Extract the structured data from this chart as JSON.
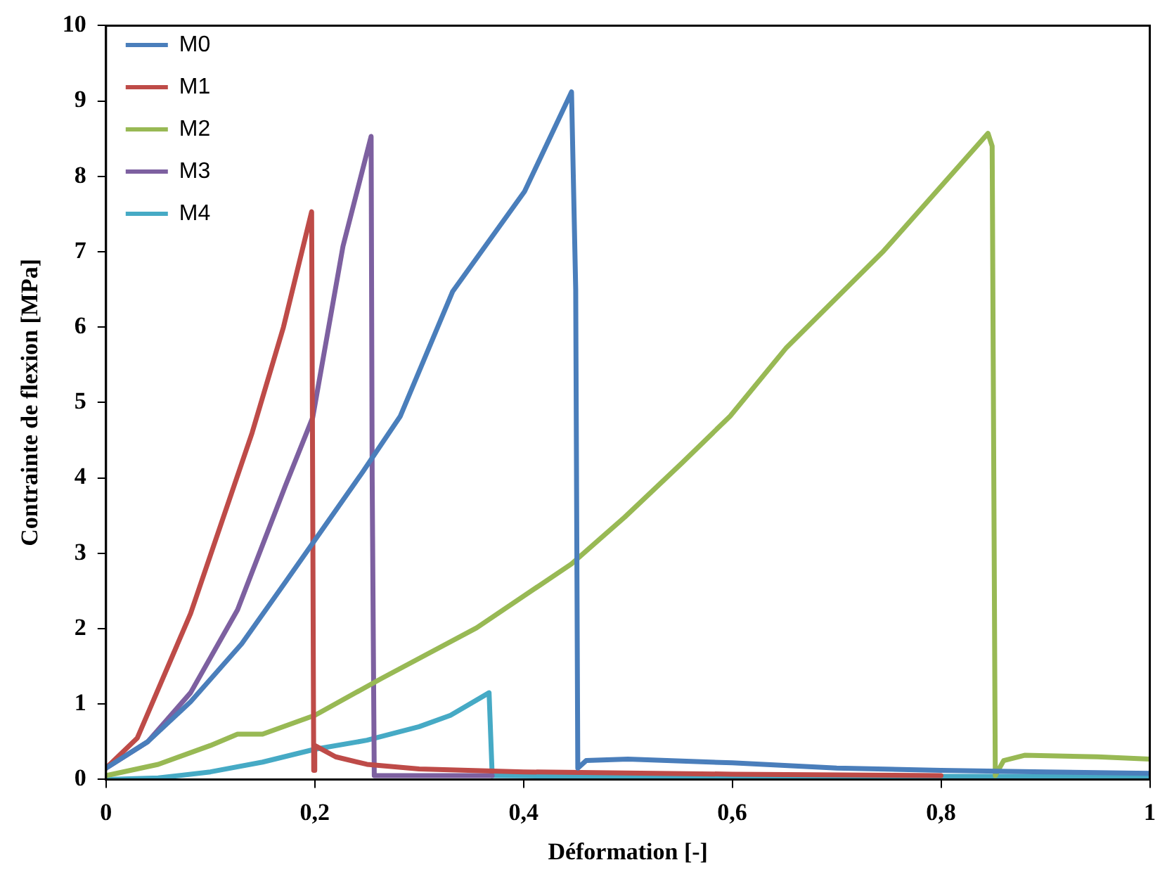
{
  "chart_data": {
    "type": "line",
    "xlabel": "Déformation [-]",
    "ylabel": "Contrainte de flexion [MPa]",
    "xlim": [
      0,
      1
    ],
    "ylim": [
      0,
      10
    ],
    "xticks": [
      0,
      {
        "value": 0.2,
        "label": "0,2"
      },
      {
        "value": 0.4,
        "label": "0,4"
      },
      {
        "value": 0.6,
        "label": "0,6"
      },
      {
        "value": 0.8,
        "label": "0,8"
      },
      1
    ],
    "yticks": [
      0,
      1,
      2,
      3,
      4,
      5,
      6,
      7,
      8,
      9,
      10
    ],
    "grid": false,
    "legend": "top left",
    "marker": "none",
    "line_style": "solid",
    "series": [
      {
        "name": "M0",
        "color": "#4a7ebb",
        "x": [
          0,
          0.04,
          0.081,
          0.13,
          0.172,
          0.246,
          0.282,
          0.332,
          0.401,
          0.446,
          0.45,
          0.452,
          0.46,
          0.5,
          0.6,
          0.7,
          0.8,
          0.9,
          1.0
        ],
        "values": [
          0.15,
          0.5,
          1.03,
          1.8,
          2.62,
          4.08,
          4.82,
          6.47,
          7.8,
          9.12,
          6.5,
          0.15,
          0.25,
          0.27,
          0.22,
          0.15,
          0.12,
          0.1,
          0.08
        ]
      },
      {
        "name": "M1",
        "color": "#be4b48",
        "x": [
          0,
          0.03,
          0.081,
          0.14,
          0.17,
          0.197,
          0.199,
          0.2,
          0.22,
          0.25,
          0.3,
          0.4,
          0.6,
          0.8
        ],
        "values": [
          0.15,
          0.55,
          2.2,
          4.6,
          6.0,
          7.53,
          0.12,
          0.45,
          0.3,
          0.2,
          0.14,
          0.1,
          0.07,
          0.05
        ]
      },
      {
        "name": "M2",
        "color": "#98b954",
        "x": [
          0,
          0.05,
          0.1,
          0.126,
          0.15,
          0.2,
          0.264,
          0.355,
          0.446,
          0.497,
          0.552,
          0.598,
          0.652,
          0.745,
          0.845,
          0.849,
          0.85,
          0.852,
          0.86,
          0.88,
          0.95,
          1.0
        ],
        "values": [
          0.05,
          0.2,
          0.45,
          0.6,
          0.6,
          0.85,
          1.34,
          2.01,
          2.86,
          3.48,
          4.2,
          4.82,
          5.73,
          7.01,
          8.57,
          8.4,
          5.6,
          0.05,
          0.25,
          0.32,
          0.3,
          0.27
        ]
      },
      {
        "name": "M3",
        "color": "#7d60a0",
        "x": [
          0,
          0.04,
          0.081,
          0.126,
          0.172,
          0.198,
          0.227,
          0.254,
          0.255,
          0.257,
          0.3,
          0.37
        ],
        "values": [
          0.15,
          0.5,
          1.15,
          2.25,
          3.9,
          4.8,
          7.07,
          8.53,
          4.0,
          0.05,
          0.05,
          0.05
        ]
      },
      {
        "name": "M4",
        "color": "#46aac5",
        "x": [
          0,
          0.05,
          0.1,
          0.15,
          0.2,
          0.25,
          0.3,
          0.33,
          0.367,
          0.37,
          0.5,
          0.7,
          1.0
        ],
        "values": [
          0,
          0.02,
          0.1,
          0.23,
          0.4,
          0.52,
          0.7,
          0.85,
          1.15,
          0.05,
          0.04,
          0.04,
          0.04
        ]
      }
    ]
  }
}
